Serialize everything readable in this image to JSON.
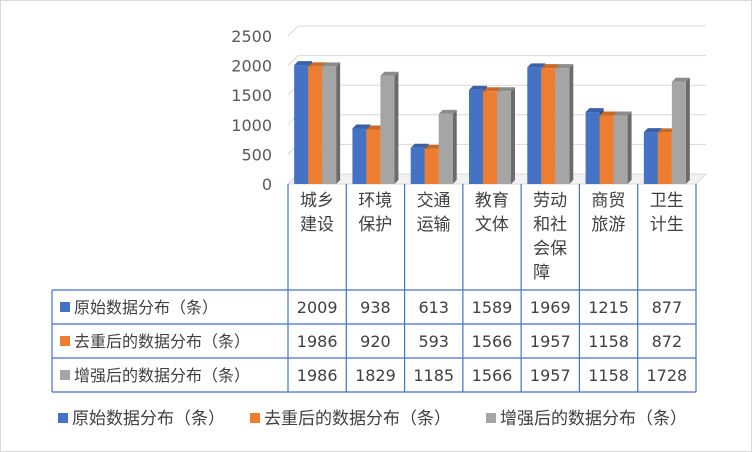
{
  "chart_data": {
    "type": "bar",
    "categories": [
      "城乡建设",
      "环境保护",
      "交通运输",
      "教育文体",
      "劳动和社会保障",
      "商贸旅游",
      "卫生计生"
    ],
    "category_lines": [
      [
        "城乡",
        "建设"
      ],
      [
        "环境",
        "保护"
      ],
      [
        "交通",
        "运输"
      ],
      [
        "教育",
        "文体"
      ],
      [
        "劳动",
        "和社",
        "会保",
        "障"
      ],
      [
        "商贸",
        "旅游"
      ],
      [
        "卫生",
        "计生"
      ]
    ],
    "series": [
      {
        "name": "原始数据分布（条）",
        "values": [
          2009,
          938,
          613,
          1589,
          1969,
          1215,
          877
        ],
        "color": "#4472C4"
      },
      {
        "name": "去重后的数据分布（条）",
        "values": [
          1986,
          920,
          593,
          1566,
          1957,
          1158,
          872
        ],
        "color": "#ED7D31"
      },
      {
        "name": "增强后的数据分布（条）",
        "values": [
          1986,
          1829,
          1185,
          1566,
          1957,
          1158,
          1728
        ],
        "color": "#A5A5A5"
      }
    ],
    "y_ticks": [
      0,
      500,
      1000,
      1500,
      2000,
      2500
    ],
    "ylim": [
      0,
      2500
    ],
    "grid": true,
    "legend": "bottom",
    "data_table": true,
    "bar_style": "3d"
  }
}
